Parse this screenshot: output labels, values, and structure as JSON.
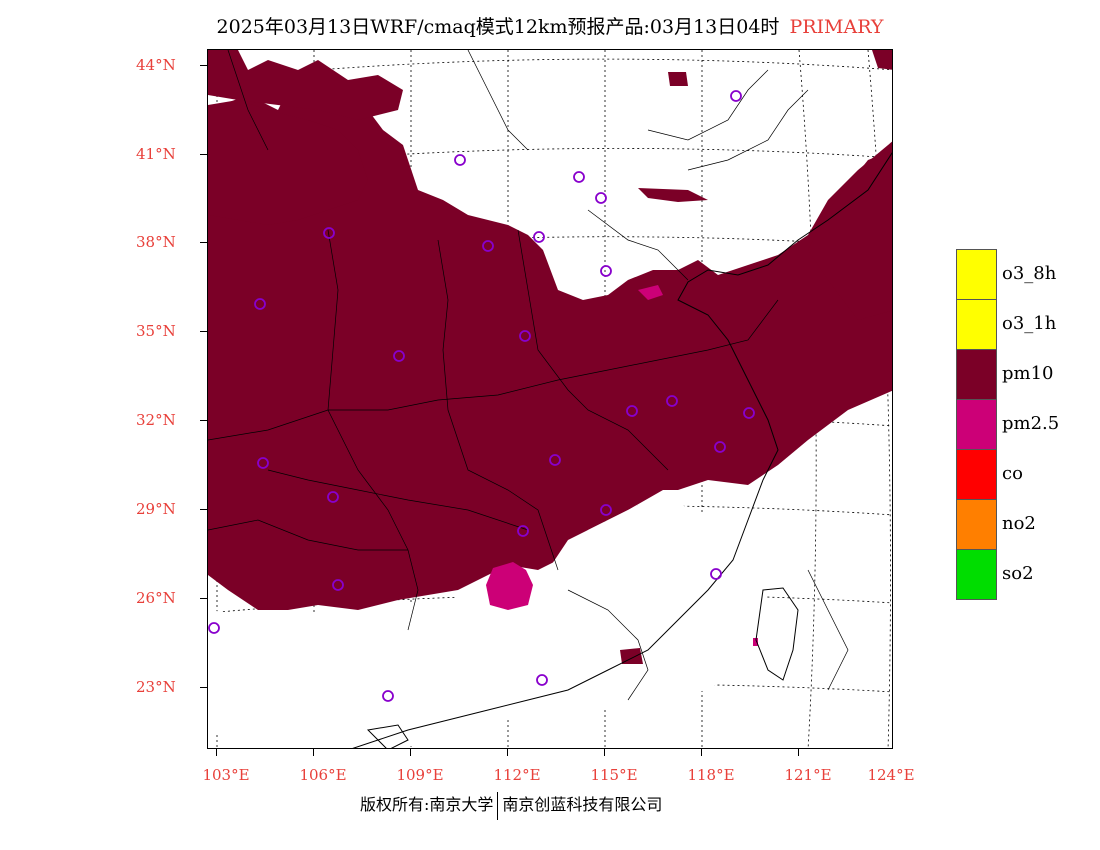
{
  "title": {
    "main": "2025年03月13日WRF/cmaq模式12km预报产品:03月13日04时",
    "tag": "PRIMARY"
  },
  "axes": {
    "lat_labels": [
      "44°N",
      "41°N",
      "38°N",
      "35°N",
      "32°N",
      "29°N",
      "26°N",
      "23°N"
    ],
    "lon_labels": [
      "103°E",
      "106°E",
      "109°E",
      "112°E",
      "115°E",
      "118°E",
      "121°E",
      "124°E"
    ]
  },
  "legend": {
    "items": [
      {
        "label": "o3_8h",
        "color": "#ffff00"
      },
      {
        "label": "o3_1h",
        "color": "#ffff00"
      },
      {
        "label": "pm10",
        "color": "#7b0027"
      },
      {
        "label": "pm2.5",
        "color": "#cc0077"
      },
      {
        "label": "co",
        "color": "#ff0000"
      },
      {
        "label": "no2",
        "color": "#ff7f00"
      },
      {
        "label": "so2",
        "color": "#00dd00"
      }
    ]
  },
  "colors": {
    "pm10": "#7b0027",
    "pm25": "#cc0077",
    "station": "#8800cc",
    "label": "#e8403a"
  },
  "footer": {
    "left": "版权所有:南京大学",
    "right": "南京创蓝科技有限公司"
  }
}
